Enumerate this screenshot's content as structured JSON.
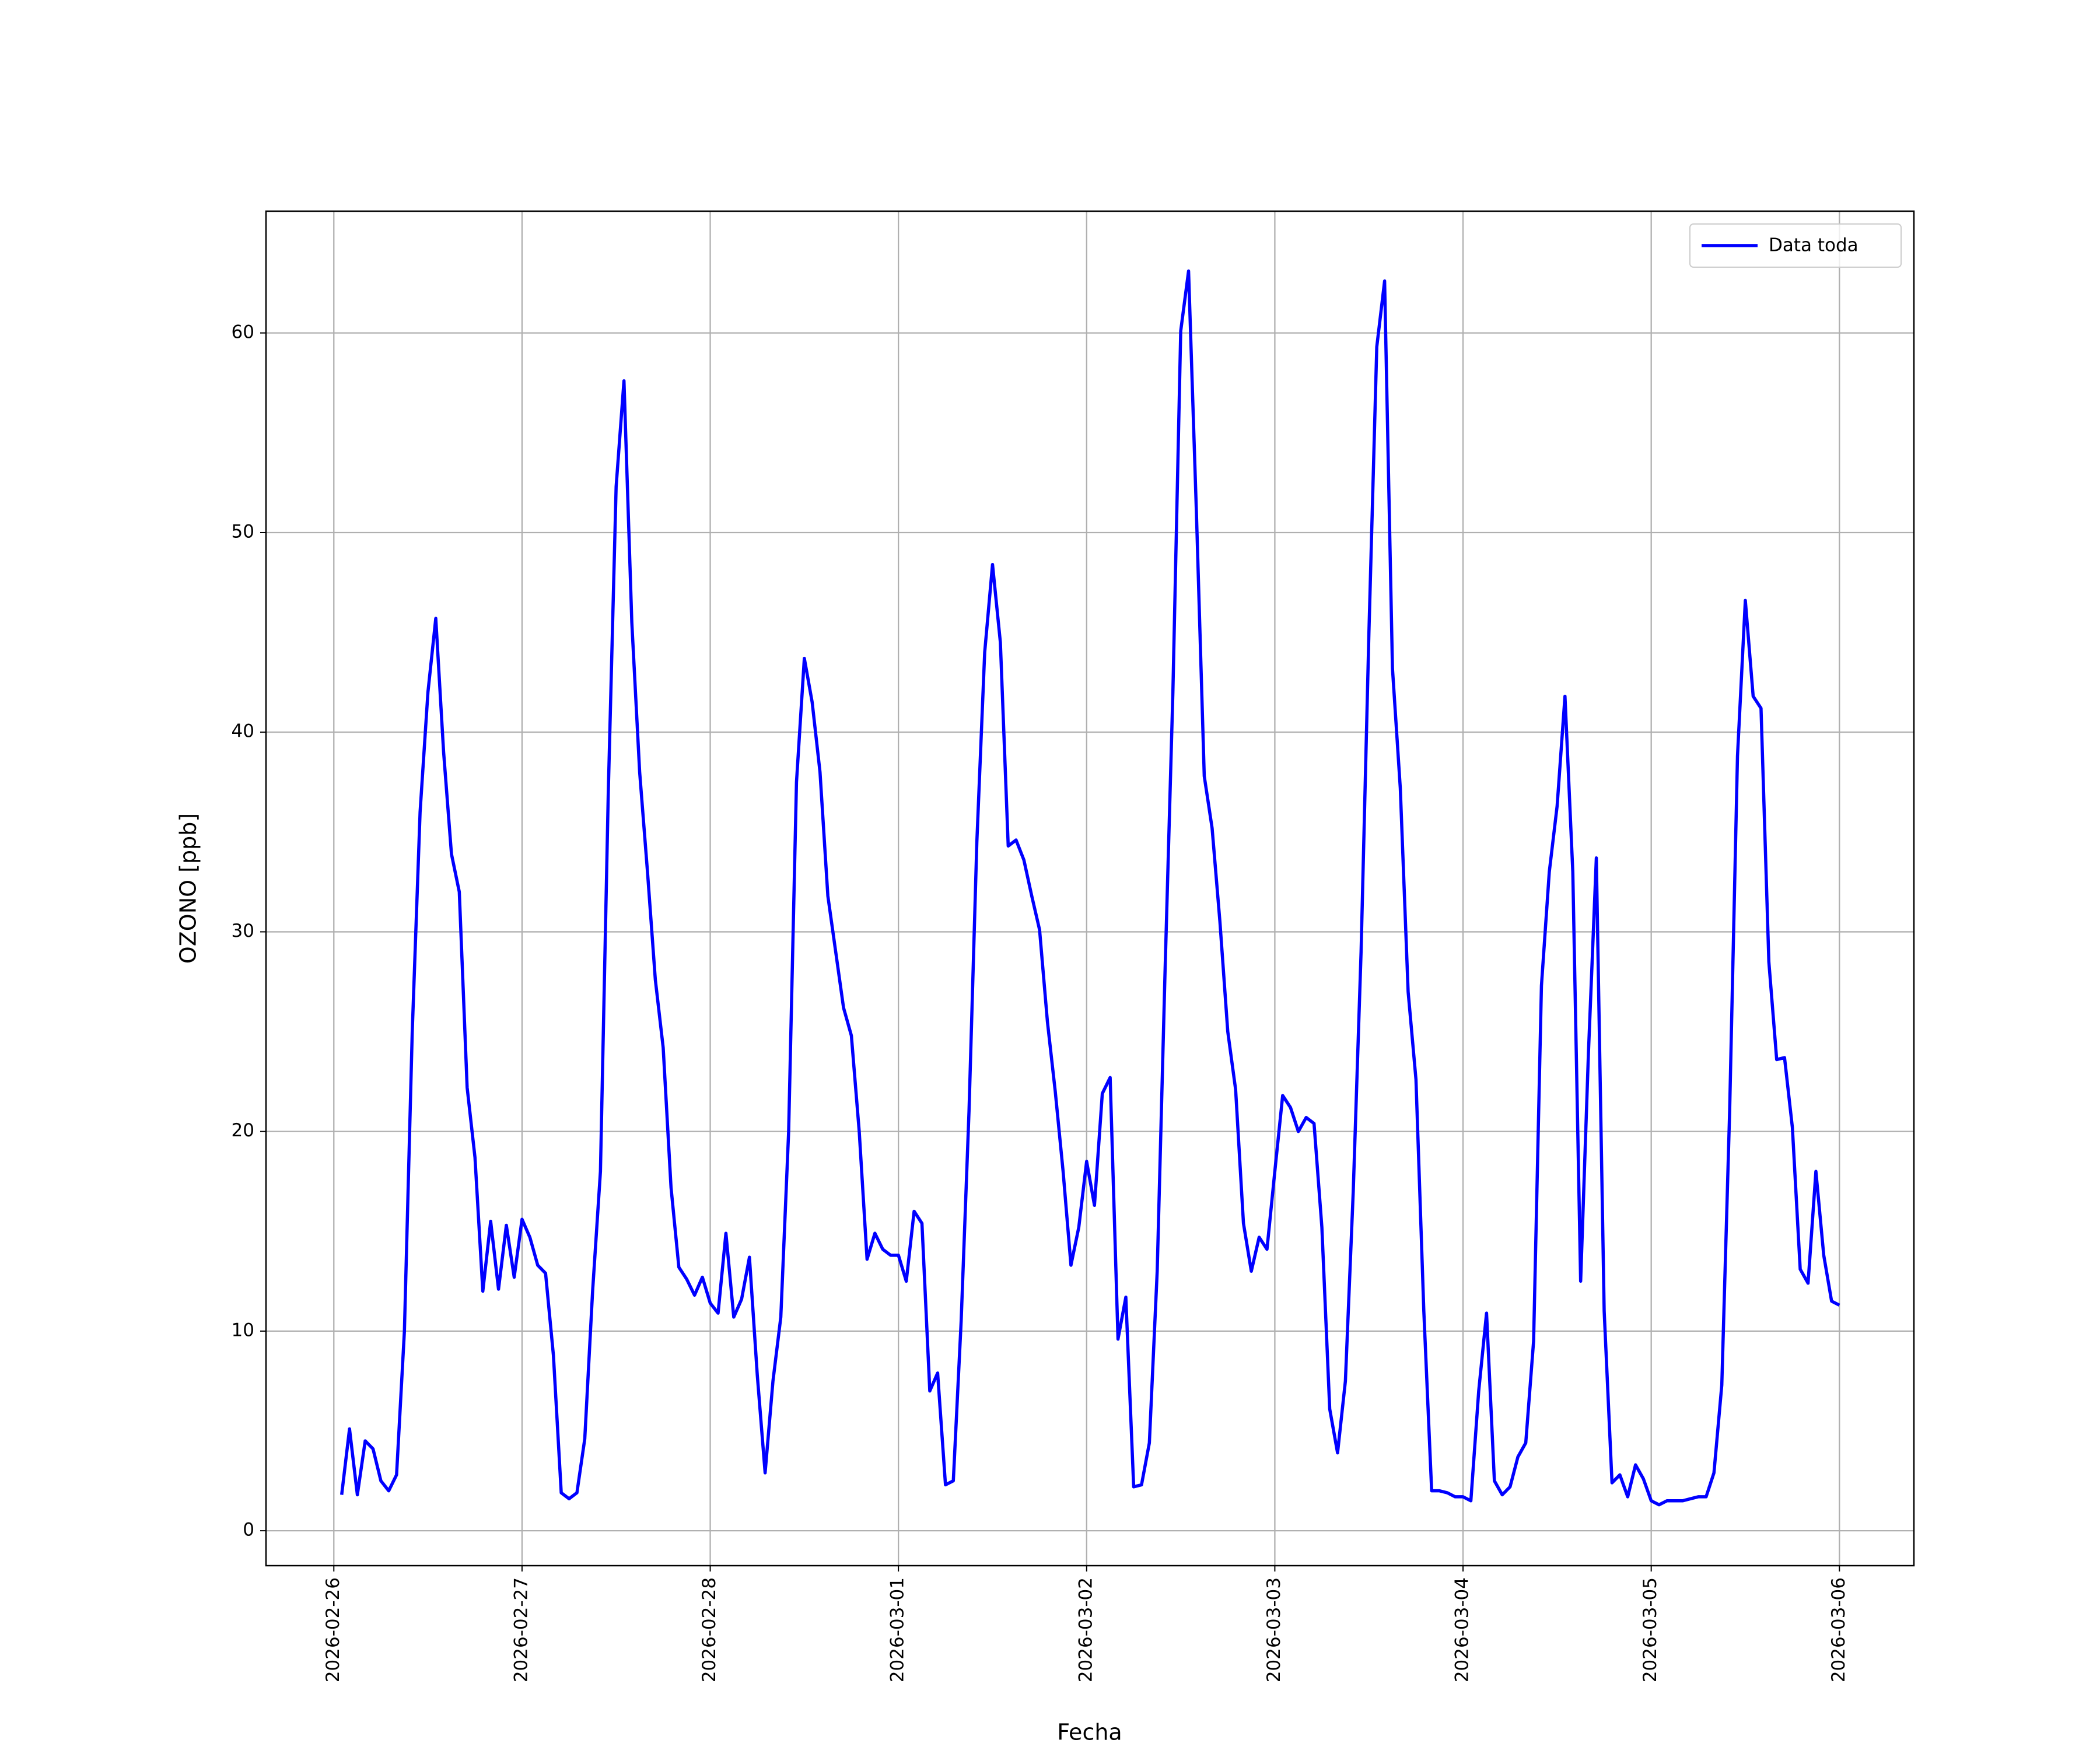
{
  "chart_data": {
    "type": "line",
    "xlabel": "Fecha",
    "ylabel": "OZONO [ppb]",
    "x": [
      "2026-02-26T01:00",
      "2026-02-26T02:00",
      "2026-02-26T03:00",
      "2026-02-26T04:00",
      "2026-02-26T05:00",
      "2026-02-26T06:00",
      "2026-02-26T07:00",
      "2026-02-26T08:00",
      "2026-02-26T09:00",
      "2026-02-26T10:00",
      "2026-02-26T11:00",
      "2026-02-26T12:00",
      "2026-02-26T13:00",
      "2026-02-26T14:00",
      "2026-02-26T15:00",
      "2026-02-26T16:00",
      "2026-02-26T17:00",
      "2026-02-26T18:00",
      "2026-02-26T19:00",
      "2026-02-26T20:00",
      "2026-02-26T21:00",
      "2026-02-26T22:00",
      "2026-02-26T23:00",
      "2026-02-27T00:00",
      "2026-02-27T01:00",
      "2026-02-27T02:00",
      "2026-02-27T03:00",
      "2026-02-27T04:00",
      "2026-02-27T05:00",
      "2026-02-27T06:00",
      "2026-02-27T07:00",
      "2026-02-27T08:00",
      "2026-02-27T09:00",
      "2026-02-27T10:00",
      "2026-02-27T11:00",
      "2026-02-27T12:00",
      "2026-02-27T13:00",
      "2026-02-27T14:00",
      "2026-02-27T15:00",
      "2026-02-27T16:00",
      "2026-02-27T17:00",
      "2026-02-27T18:00",
      "2026-02-27T19:00",
      "2026-02-27T20:00",
      "2026-02-27T21:00",
      "2026-02-27T22:00",
      "2026-02-27T23:00",
      "2026-02-28T00:00",
      "2026-02-28T01:00",
      "2026-02-28T02:00",
      "2026-02-28T03:00",
      "2026-02-28T04:00",
      "2026-02-28T05:00",
      "2026-02-28T06:00",
      "2026-02-28T07:00",
      "2026-02-28T08:00",
      "2026-02-28T09:00",
      "2026-02-28T10:00",
      "2026-02-28T11:00",
      "2026-02-28T12:00",
      "2026-02-28T13:00",
      "2026-02-28T14:00",
      "2026-02-28T15:00",
      "2026-02-28T16:00",
      "2026-02-28T17:00",
      "2026-02-28T18:00",
      "2026-02-28T19:00",
      "2026-02-28T20:00",
      "2026-02-28T21:00",
      "2026-02-28T22:00",
      "2026-02-28T23:00",
      "2026-03-01T00:00",
      "2026-03-01T01:00",
      "2026-03-01T02:00",
      "2026-03-01T03:00",
      "2026-03-01T04:00",
      "2026-03-01T05:00",
      "2026-03-01T06:00",
      "2026-03-01T07:00",
      "2026-03-01T08:00",
      "2026-03-01T09:00",
      "2026-03-01T10:00",
      "2026-03-01T11:00",
      "2026-03-01T12:00",
      "2026-03-01T13:00",
      "2026-03-01T14:00",
      "2026-03-01T15:00",
      "2026-03-01T16:00",
      "2026-03-01T17:00",
      "2026-03-01T18:00",
      "2026-03-01T19:00",
      "2026-03-01T20:00",
      "2026-03-01T21:00",
      "2026-03-01T22:00",
      "2026-03-01T23:00",
      "2026-03-02T00:00",
      "2026-03-02T01:00",
      "2026-03-02T02:00",
      "2026-03-02T03:00",
      "2026-03-02T04:00",
      "2026-03-02T05:00",
      "2026-03-02T06:00",
      "2026-03-02T07:00",
      "2026-03-02T08:00",
      "2026-03-02T09:00",
      "2026-03-02T10:00",
      "2026-03-02T11:00",
      "2026-03-02T12:00",
      "2026-03-02T13:00",
      "2026-03-02T14:00",
      "2026-03-02T15:00",
      "2026-03-02T16:00",
      "2026-03-02T17:00",
      "2026-03-02T18:00",
      "2026-03-02T19:00",
      "2026-03-02T20:00",
      "2026-03-02T21:00",
      "2026-03-02T22:00",
      "2026-03-02T23:00",
      "2026-03-03T00:00",
      "2026-03-03T01:00",
      "2026-03-03T02:00",
      "2026-03-03T03:00",
      "2026-03-03T04:00",
      "2026-03-03T05:00",
      "2026-03-03T06:00",
      "2026-03-03T07:00",
      "2026-03-03T08:00",
      "2026-03-03T09:00",
      "2026-03-03T10:00",
      "2026-03-03T11:00",
      "2026-03-03T12:00",
      "2026-03-03T13:00",
      "2026-03-03T14:00",
      "2026-03-03T15:00",
      "2026-03-03T16:00",
      "2026-03-03T17:00",
      "2026-03-03T18:00",
      "2026-03-03T19:00",
      "2026-03-03T20:00",
      "2026-03-03T21:00",
      "2026-03-03T22:00",
      "2026-03-03T23:00",
      "2026-03-04T00:00",
      "2026-03-04T01:00",
      "2026-03-04T02:00",
      "2026-03-04T03:00",
      "2026-03-04T04:00",
      "2026-03-04T05:00",
      "2026-03-04T06:00",
      "2026-03-04T07:00",
      "2026-03-04T08:00",
      "2026-03-04T09:00",
      "2026-03-04T10:00",
      "2026-03-04T11:00",
      "2026-03-04T12:00",
      "2026-03-04T13:00",
      "2026-03-04T14:00",
      "2026-03-04T15:00",
      "2026-03-04T16:00",
      "2026-03-04T17:00",
      "2026-03-04T18:00",
      "2026-03-04T19:00",
      "2026-03-04T20:00",
      "2026-03-04T21:00",
      "2026-03-04T22:00",
      "2026-03-04T23:00",
      "2026-03-05T00:00",
      "2026-03-05T01:00",
      "2026-03-05T02:00",
      "2026-03-05T03:00",
      "2026-03-05T04:00",
      "2026-03-05T05:00",
      "2026-03-05T06:00",
      "2026-03-05T07:00",
      "2026-03-05T08:00",
      "2026-03-05T09:00",
      "2026-03-05T10:00",
      "2026-03-05T11:00",
      "2026-03-05T12:00",
      "2026-03-05T13:00",
      "2026-03-05T14:00",
      "2026-03-05T15:00",
      "2026-03-05T16:00",
      "2026-03-05T17:00",
      "2026-03-05T18:00",
      "2026-03-05T19:00",
      "2026-03-05T20:00",
      "2026-03-05T21:00",
      "2026-03-05T22:00",
      "2026-03-05T23:00",
      "2026-03-06T00:00"
    ],
    "series": [
      {
        "name": "Data toda",
        "color": "#0000ff",
        "values": [
          1.8,
          5.1,
          1.8,
          4.5,
          4.1,
          2.5,
          2.0,
          2.8,
          10,
          25,
          36,
          42,
          45.7,
          39,
          33.9,
          32,
          22.2,
          18.7,
          12,
          15.5,
          12.1,
          15.3,
          12.7,
          15.6,
          14.7,
          13.3,
          12.9,
          8.8,
          1.9,
          1.6,
          1.9,
          4.6,
          12,
          18,
          37,
          52.3,
          57.6,
          45.5,
          38,
          33,
          27.6,
          24.2,
          17.2,
          13.2,
          12.6,
          11.8,
          12.7,
          11.4,
          10.9,
          14.9,
          10.7,
          11.6,
          13.7,
          7.8,
          2.9,
          7.5,
          10.7,
          20,
          37.5,
          43.7,
          41.5,
          38,
          31.8,
          29,
          26.2,
          24.8,
          20,
          13.6,
          14.9,
          14.1,
          13.8,
          13.8,
          12.5,
          16,
          15.4,
          7,
          7.9,
          2.3,
          2.5,
          10.5,
          21,
          34.5,
          44,
          48.4,
          44.5,
          34.3,
          34.6,
          33.6,
          31.8,
          30.1,
          25.5,
          22,
          18,
          13.3,
          15.2,
          18.5,
          16.3,
          21.9,
          22.7,
          9.6,
          11.7,
          2.2,
          2.3,
          4.4,
          13,
          28,
          42,
          60.1,
          63.1,
          51,
          37.8,
          35.2,
          30.5,
          25,
          22.1,
          15.4,
          13,
          14.7,
          14.1,
          18,
          21.8,
          21.2,
          20,
          20.7,
          20.4,
          15.2,
          6.1,
          3.9,
          7.5,
          17,
          29,
          45,
          59.3,
          62.6,
          43.2,
          37.2,
          27,
          22.6,
          11,
          2,
          2,
          1.9,
          1.7,
          1.7,
          1.5,
          7,
          10.9,
          2.5,
          1.8,
          2.2,
          3.7,
          4.4,
          9.5,
          27.3,
          33,
          36.3,
          41.8,
          33,
          12.5,
          24,
          33.7,
          11,
          2.4,
          2.8,
          1.7,
          3.3,
          2.6,
          1.5,
          1.3,
          1.5,
          1.5,
          1.5,
          1.6,
          1.7,
          1.7,
          2.9,
          7.3,
          21,
          38.8,
          46.6,
          41.8,
          41.2,
          28.5,
          23.6,
          23.7,
          20.2,
          13.1,
          12.4,
          18,
          13.8,
          11.5,
          11.3
        ]
      }
    ],
    "xlim": [
      "2026-02-25T15:21",
      "2026-03-06T09:30"
    ],
    "xticks": [
      "2026-02-26",
      "2026-02-27",
      "2026-02-28",
      "2026-03-01",
      "2026-03-02",
      "2026-03-03",
      "2026-03-04",
      "2026-03-05",
      "2026-03-06"
    ],
    "ylim": [
      -1.75,
      66.1
    ],
    "yticks": [
      0,
      10,
      20,
      30,
      40,
      50,
      60
    ],
    "grid": true,
    "legend": "upper right"
  }
}
